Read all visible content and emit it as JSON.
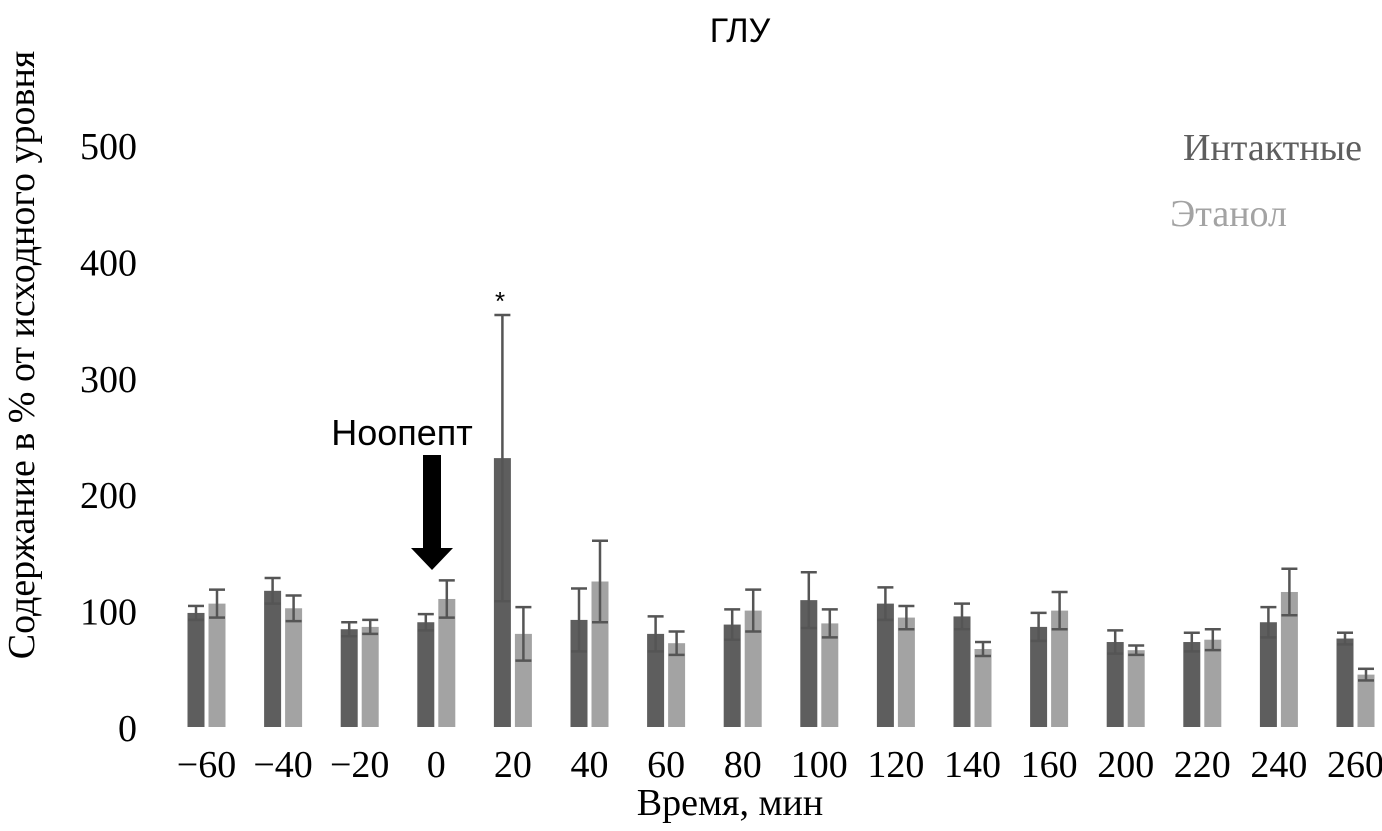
{
  "chart_data": {
    "type": "bar",
    "title": "ГЛУ",
    "xlabel": "Время, мин",
    "ylabel": "Содержание в % от исходного уровня",
    "ylim": [
      0,
      500
    ],
    "yticks": [
      "0",
      "100",
      "200",
      "300",
      "400",
      "500"
    ],
    "categories": [
      "−60",
      "−40",
      "−20",
      "0",
      "20",
      "40",
      "60",
      "80",
      "100",
      "120",
      "140",
      "160",
      "200",
      "220",
      "240",
      "260"
    ],
    "series": [
      {
        "name": "Интактные",
        "color": "#5e5e5e",
        "values": [
          98,
          117,
          84,
          90,
          231,
          92,
          80,
          88,
          109,
          106,
          95,
          86,
          73,
          73,
          90,
          76
        ],
        "errors": [
          6,
          11,
          6,
          7,
          123,
          27,
          15,
          13,
          24,
          14,
          11,
          12,
          10,
          8,
          13,
          5
        ]
      },
      {
        "name": "Этанол",
        "color": "#a3a3a3",
        "values": [
          106,
          102,
          86,
          110,
          80,
          125,
          72,
          100,
          89,
          94,
          67,
          100,
          66,
          75,
          116,
          45
        ],
        "errors": [
          12,
          11,
          6,
          16,
          23,
          35,
          10,
          18,
          12,
          10,
          6,
          16,
          4,
          9,
          20,
          5
        ]
      }
    ],
    "legend_position": "top-right",
    "grid": false,
    "annotations": {
      "significance_mark": "*",
      "significance_category": "20",
      "arrow_label": "Ноопепт",
      "arrow_category": "0"
    }
  }
}
